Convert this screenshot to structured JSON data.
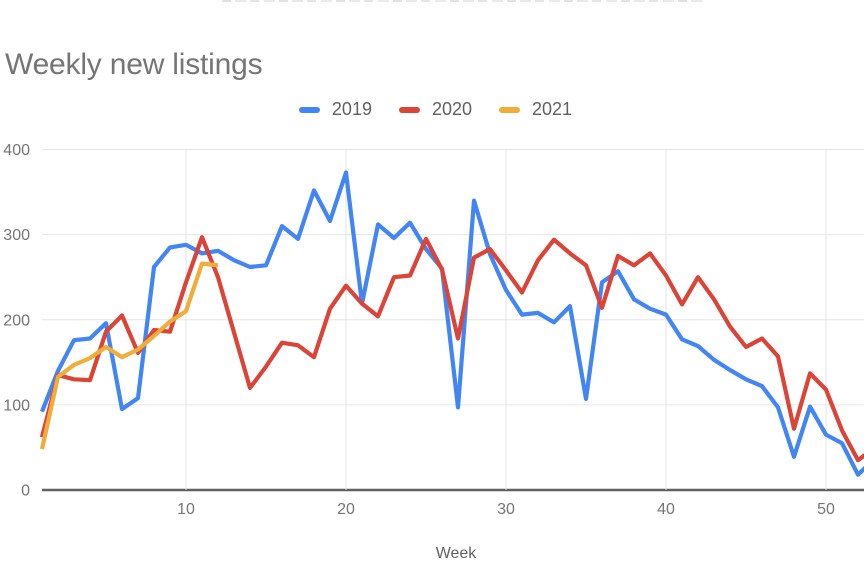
{
  "chart": {
    "title": "Weekly new listings",
    "x_axis_title": "Week"
  },
  "chart_data": {
    "type": "line",
    "title": "Weekly new listings",
    "xlabel": "Week",
    "ylabel": "",
    "xlim": [
      1,
      53
    ],
    "ylim": [
      0,
      400
    ],
    "x_ticks": [
      10,
      20,
      30,
      40,
      50
    ],
    "y_ticks": [
      0,
      100,
      200,
      300,
      400
    ],
    "grid": true,
    "legend_position": "top",
    "x_unit": "week_number",
    "series": [
      {
        "name": "2019",
        "color": "#4285f4",
        "values": [
          92,
          140,
          176,
          178,
          196,
          95,
          108,
          262,
          285,
          288,
          278,
          281,
          270,
          262,
          264,
          310,
          295,
          352,
          316,
          373,
          219,
          312,
          296,
          314,
          283,
          260,
          97,
          340,
          277,
          235,
          206,
          208,
          197,
          216,
          107,
          244,
          257,
          224,
          213,
          206,
          177,
          169,
          153,
          141,
          130,
          122,
          97,
          39,
          98,
          65,
          55,
          18,
          36
        ]
      },
      {
        "name": "2020",
        "color": "#db4437",
        "values": [
          62,
          135,
          130,
          129,
          186,
          205,
          161,
          188,
          186,
          244,
          297,
          250,
          185,
          120,
          145,
          173,
          170,
          156,
          213,
          240,
          219,
          204,
          250,
          252,
          295,
          259,
          178,
          273,
          283,
          258,
          232,
          270,
          294,
          278,
          264,
          214,
          275,
          264,
          278,
          252,
          218,
          250,
          224,
          192,
          168,
          178,
          157,
          72,
          137,
          118,
          70,
          35,
          49
        ]
      },
      {
        "name": "2021",
        "color": "#f0ad3a",
        "values": [
          48,
          133,
          147,
          155,
          168,
          156,
          165,
          181,
          198,
          210,
          266,
          264
        ]
      }
    ]
  },
  "style": {
    "grid_color": "#e6e6e6",
    "axis_color": "#616161",
    "tick_label_color": "#757575",
    "axis_title_color": "#616161"
  }
}
